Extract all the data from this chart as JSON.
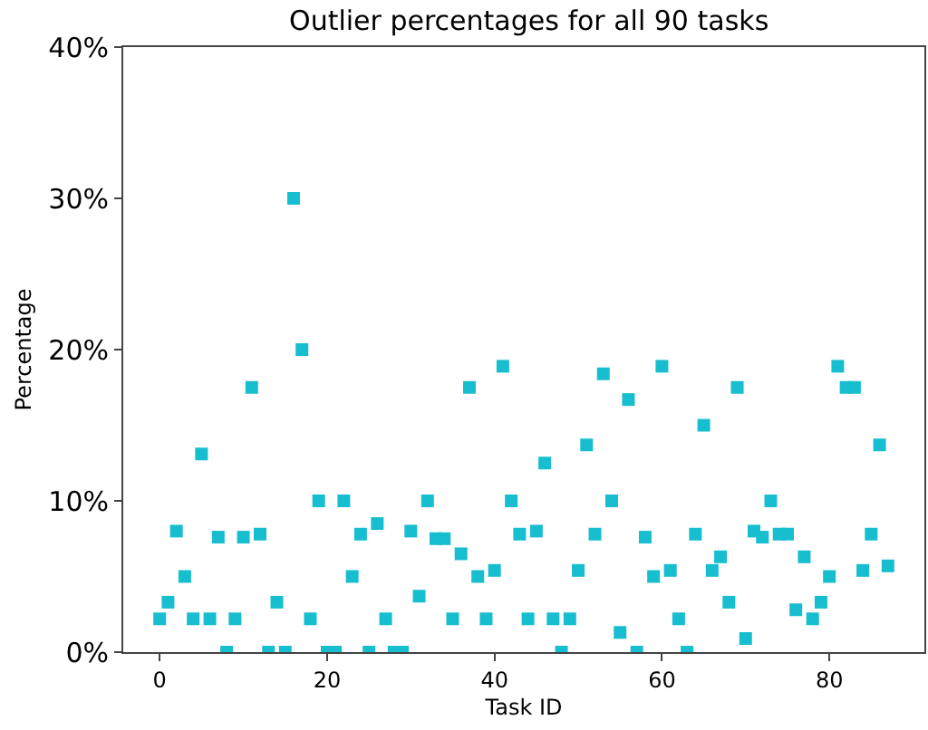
{
  "chart_data": {
    "type": "scatter",
    "title": "Outlier percentages for all 90 tasks",
    "xlabel": "Task ID",
    "ylabel": "Percentage",
    "x": [
      0,
      1,
      2,
      3,
      4,
      5,
      6,
      7,
      8,
      9,
      10,
      11,
      12,
      13,
      14,
      15,
      16,
      17,
      18,
      19,
      20,
      21,
      22,
      23,
      24,
      25,
      26,
      27,
      28,
      29,
      30,
      31,
      32,
      33,
      34,
      35,
      36,
      37,
      38,
      39,
      40,
      41,
      42,
      43,
      44,
      45,
      46,
      47,
      48,
      49,
      50,
      51,
      52,
      53,
      54,
      55,
      56,
      57,
      58,
      59,
      60,
      61,
      62,
      63,
      64,
      65,
      66,
      67,
      68,
      69,
      70,
      71,
      72,
      73,
      74,
      75,
      76,
      77,
      78,
      79,
      80,
      81,
      82,
      83,
      84,
      85,
      86,
      87
    ],
    "series": [
      {
        "color": "#17becf",
        "values": [
          2.2,
          3.3,
          8.0,
          5.0,
          2.2,
          13.1,
          2.2,
          7.6,
          0,
          2.2,
          7.6,
          17.5,
          7.8,
          0,
          3.3,
          0,
          30.0,
          20.0,
          2.2,
          10.0,
          0,
          0,
          10.0,
          5.0,
          7.8,
          0,
          8.5,
          2.2,
          0,
          0,
          8.0,
          3.7,
          10.0,
          7.5,
          7.5,
          2.2,
          6.5,
          17.5,
          5.0,
          2.2,
          5.4,
          18.9,
          10.0,
          7.8,
          2.2,
          8.0,
          12.5,
          2.2,
          0,
          2.2,
          5.4,
          13.7,
          7.8,
          18.4,
          10.0,
          1.3,
          16.7,
          0,
          7.6,
          5.0,
          18.9,
          5.4,
          2.2,
          0,
          7.8,
          15.0,
          5.4,
          6.3,
          3.3,
          17.5,
          0.9,
          8.0,
          7.6,
          10.0,
          7.8,
          7.8,
          2.8,
          6.3,
          2.2,
          3.3,
          5.0,
          18.9,
          17.5,
          17.5,
          5.4,
          7.8,
          13.7,
          5.7
        ]
      }
    ],
    "marker": "square",
    "grid": false,
    "xlim": [
      -4.35,
      91.35
    ],
    "xticks": [
      0,
      20,
      40,
      60,
      80
    ],
    "ylim": [
      0,
      40
    ],
    "yticks": [
      {
        "value": 0,
        "label": "0%"
      },
      {
        "value": 10,
        "label": "10%"
      },
      {
        "value": 20,
        "label": "20%"
      },
      {
        "value": 30,
        "label": "30%"
      },
      {
        "value": 40,
        "label": "40%"
      }
    ]
  }
}
